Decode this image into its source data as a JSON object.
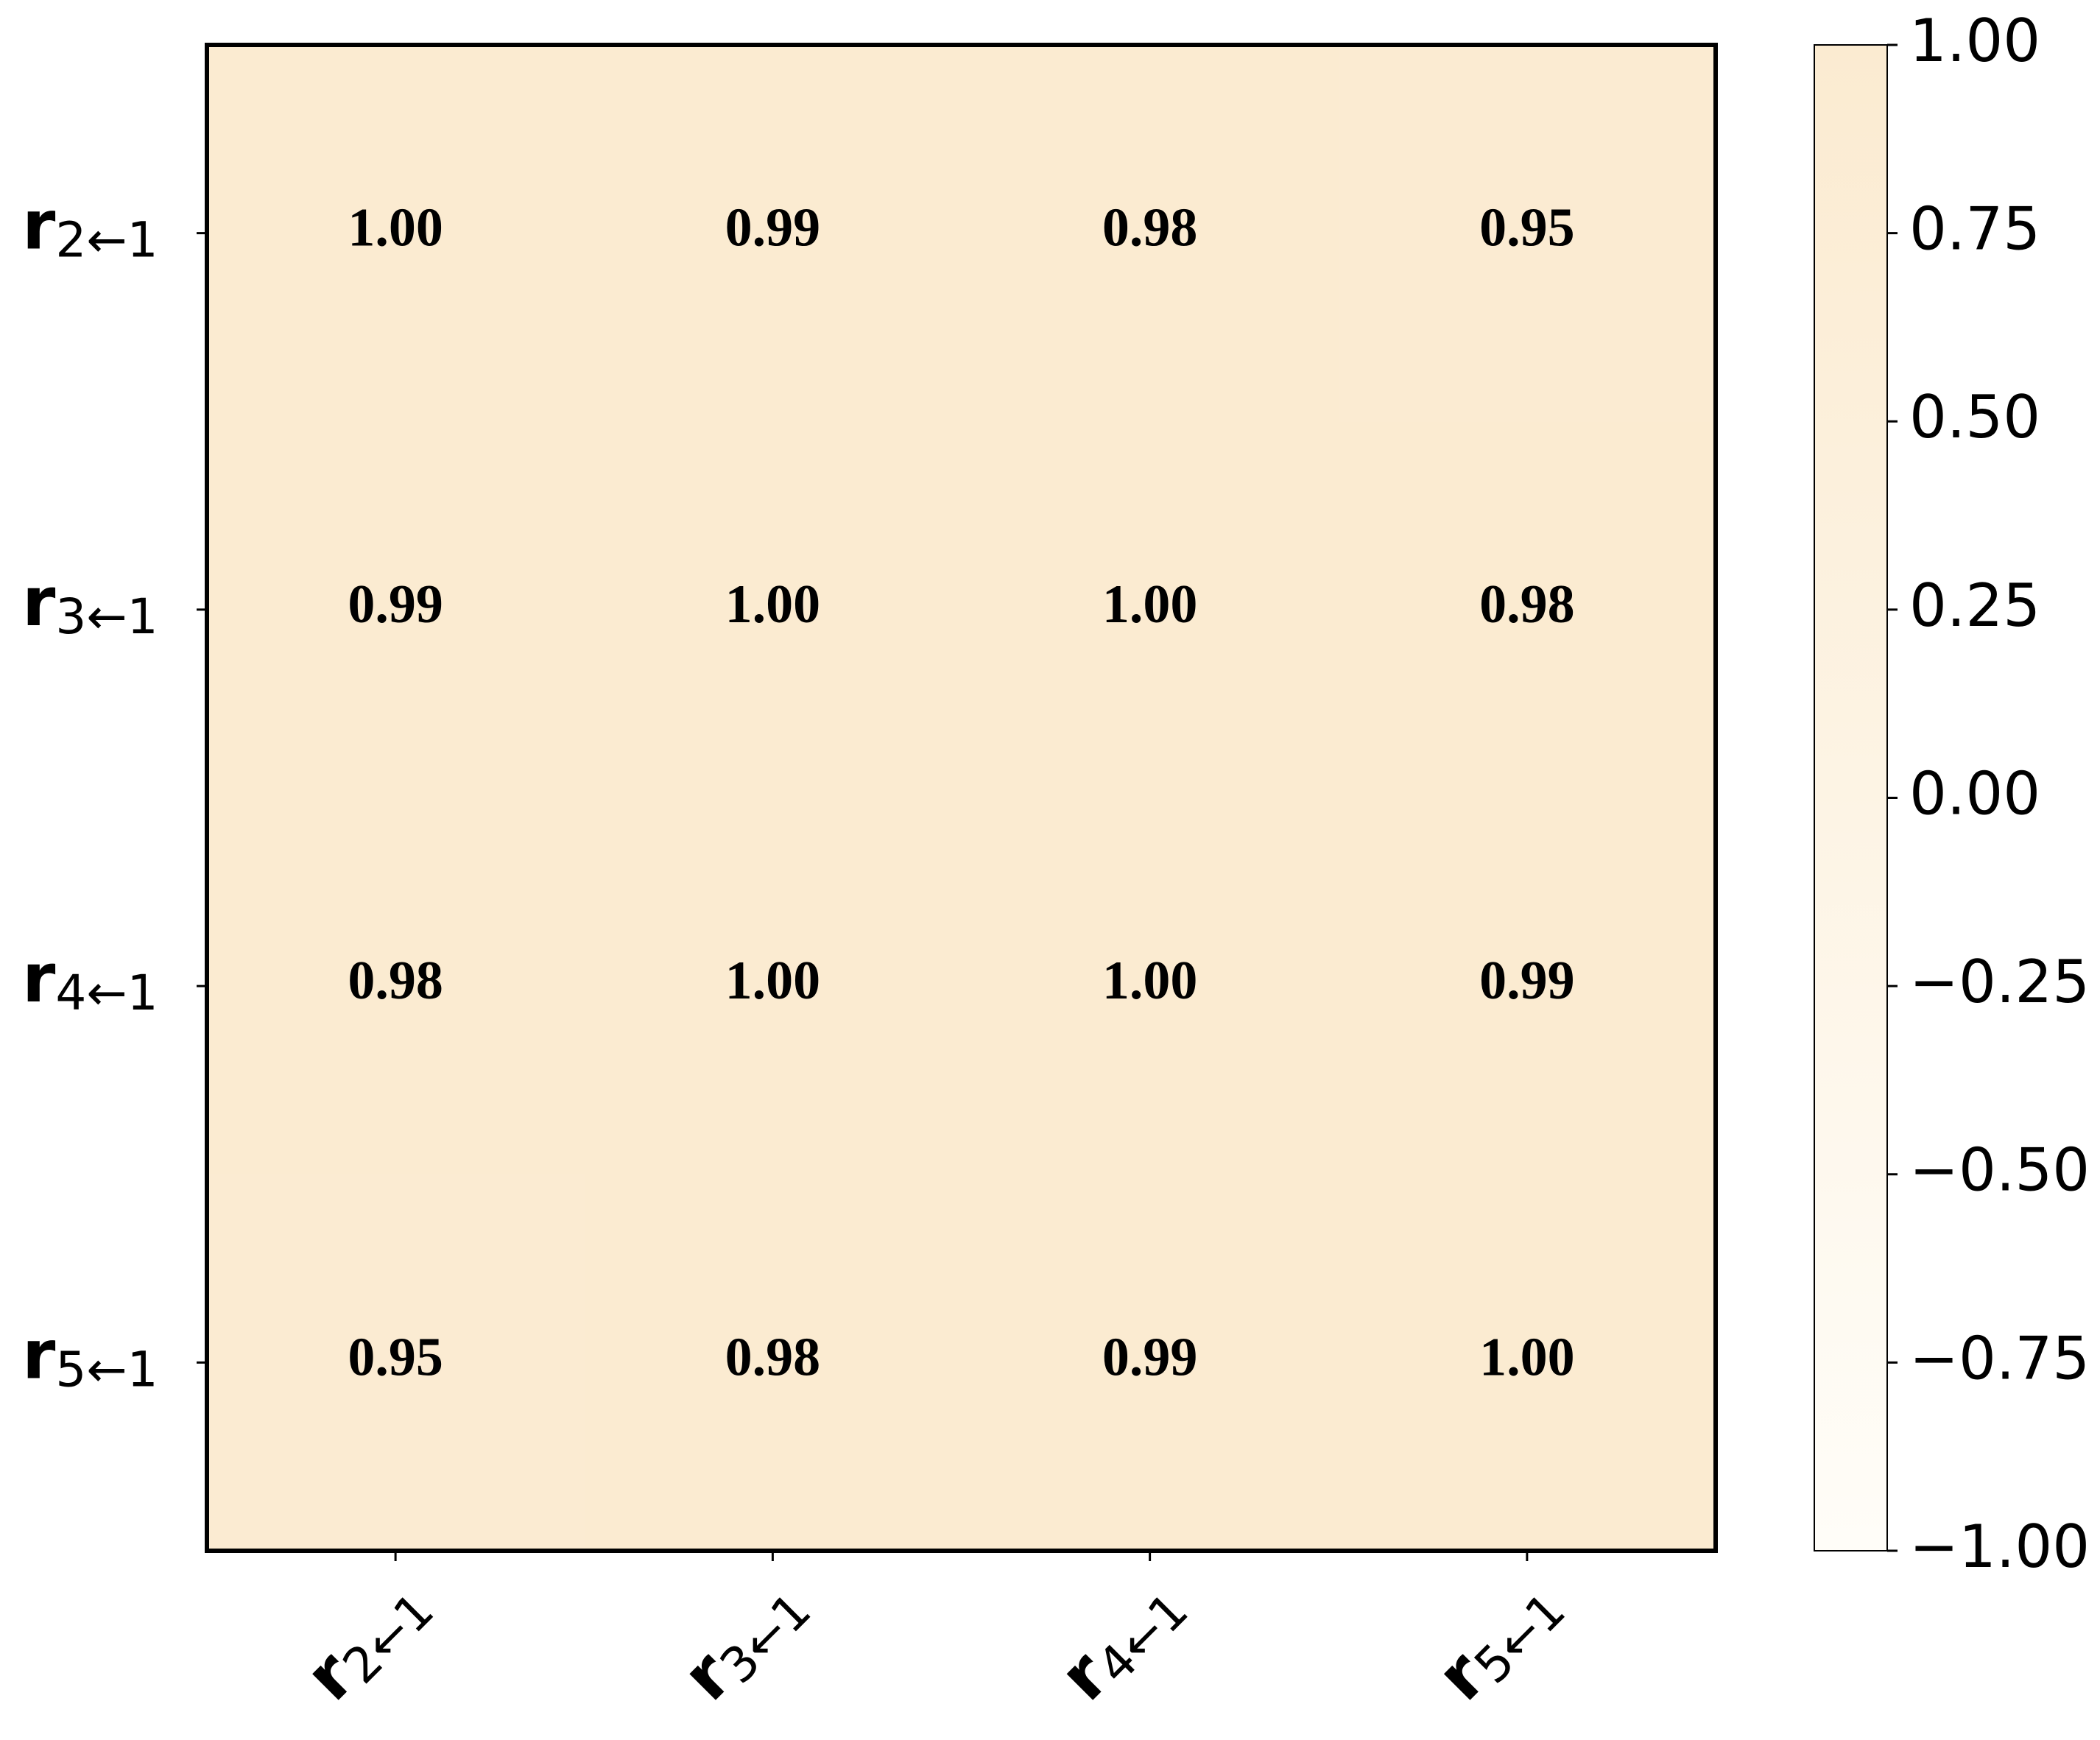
{
  "chart_data": {
    "type": "heatmap",
    "x_categories": [
      "r2←1",
      "r3←1",
      "r4←1",
      "r5←1"
    ],
    "y_categories": [
      "r2←1",
      "r3←1",
      "r4←1",
      "r5←1"
    ],
    "values": [
      [
        1.0,
        0.99,
        0.98,
        0.95
      ],
      [
        0.99,
        1.0,
        1.0,
        0.98
      ],
      [
        0.98,
        1.0,
        1.0,
        0.99
      ],
      [
        0.95,
        0.98,
        0.99,
        1.0
      ]
    ],
    "value_labels": [
      [
        "1.00",
        "0.99",
        "0.98",
        "0.95"
      ],
      [
        "0.99",
        "1.00",
        "1.00",
        "0.98"
      ],
      [
        "0.98",
        "1.00",
        "1.00",
        "0.99"
      ],
      [
        "0.95",
        "0.98",
        "0.99",
        "1.00"
      ]
    ],
    "colormap": [
      "#fffdf8",
      "#fbebd1"
    ],
    "zlim": [
      -1,
      1
    ],
    "zticks": [
      {
        "value": 1,
        "label": "1.00"
      },
      {
        "value": 0.75,
        "label": "0.75"
      },
      {
        "value": 0.5,
        "label": "0.50"
      },
      {
        "value": 0.25,
        "label": "0.25"
      },
      {
        "value": 0,
        "label": "0.00"
      },
      {
        "value": -0.25,
        "label": "−0.25"
      },
      {
        "value": -0.5,
        "label": "−0.50"
      },
      {
        "value": -0.75,
        "label": "−0.75"
      },
      {
        "value": -1,
        "label": "−1.00"
      }
    ]
  }
}
